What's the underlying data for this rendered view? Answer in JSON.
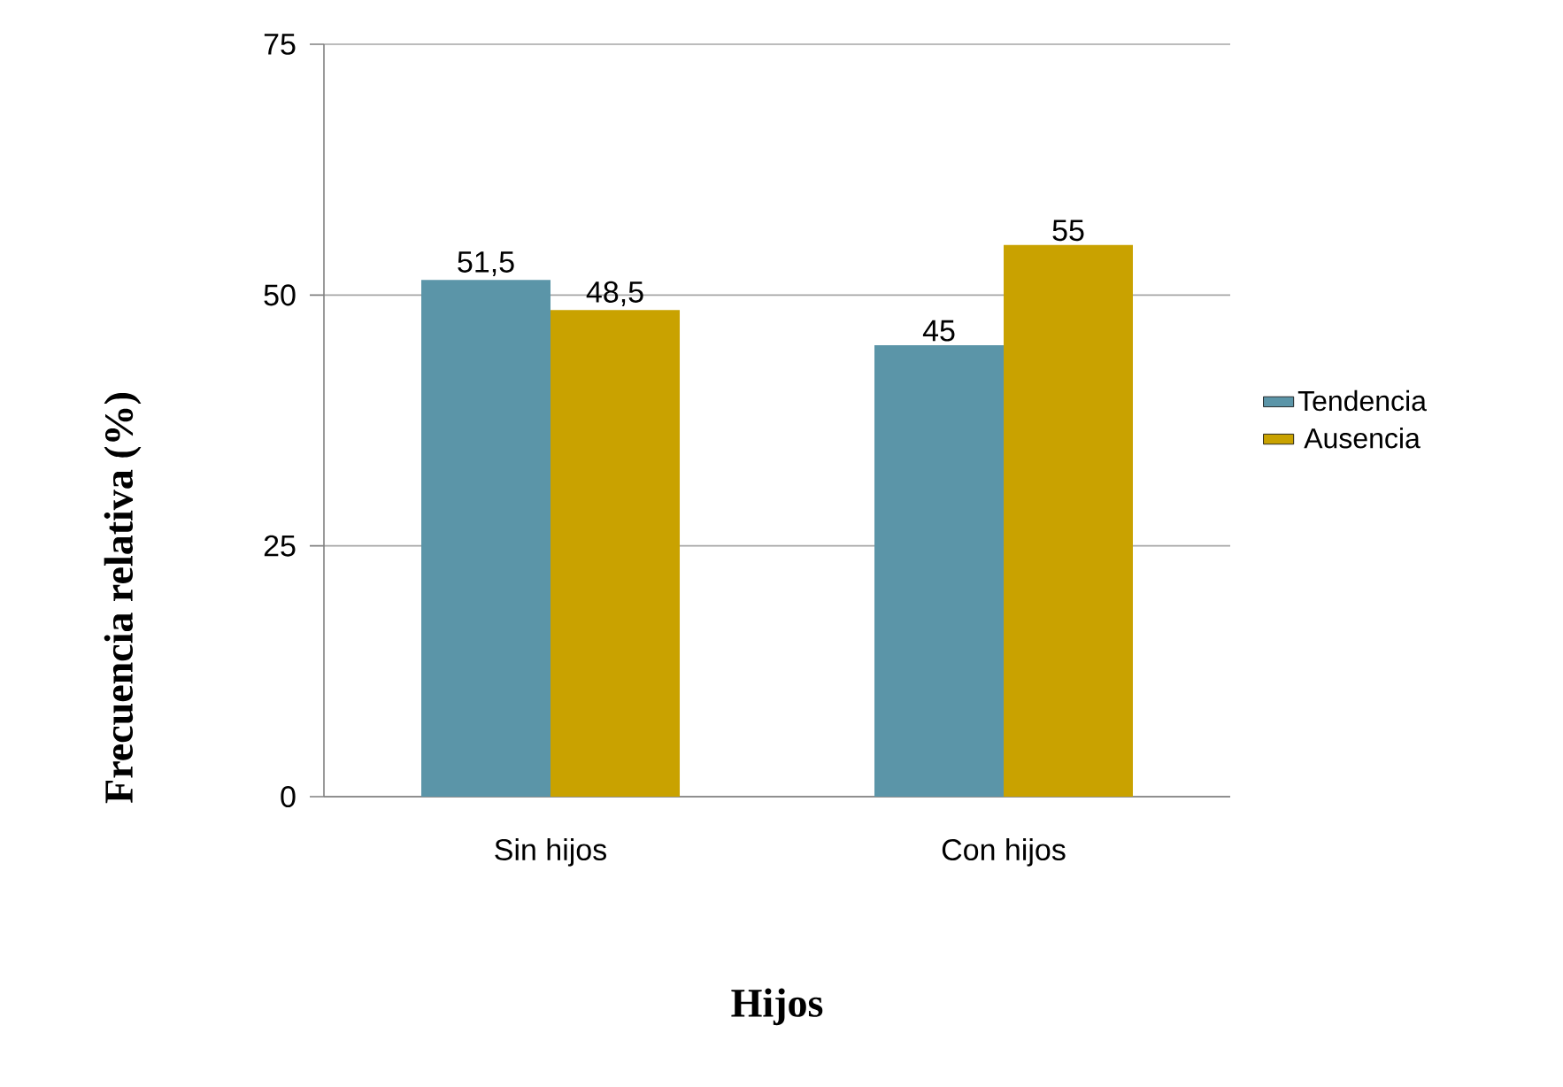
{
  "chart_data": {
    "type": "bar",
    "xlabel": "Hijos",
    "ylabel": "Frecuencia relativa (%)",
    "categories": [
      "Sin hijos",
      "Con hijos"
    ],
    "series": [
      {
        "name": "Tendencia",
        "color": "#5b95a8",
        "values": [
          51.5,
          45
        ],
        "value_labels": [
          "51,5",
          "45"
        ]
      },
      {
        "name": "Ausencia",
        "color": "#c9a200",
        "values": [
          48.5,
          55
        ],
        "value_labels": [
          "48,5",
          "55"
        ]
      }
    ],
    "ylim": [
      0,
      75
    ],
    "yticks": [
      0,
      25,
      50,
      75
    ],
    "grid": "y",
    "legend": "right"
  }
}
